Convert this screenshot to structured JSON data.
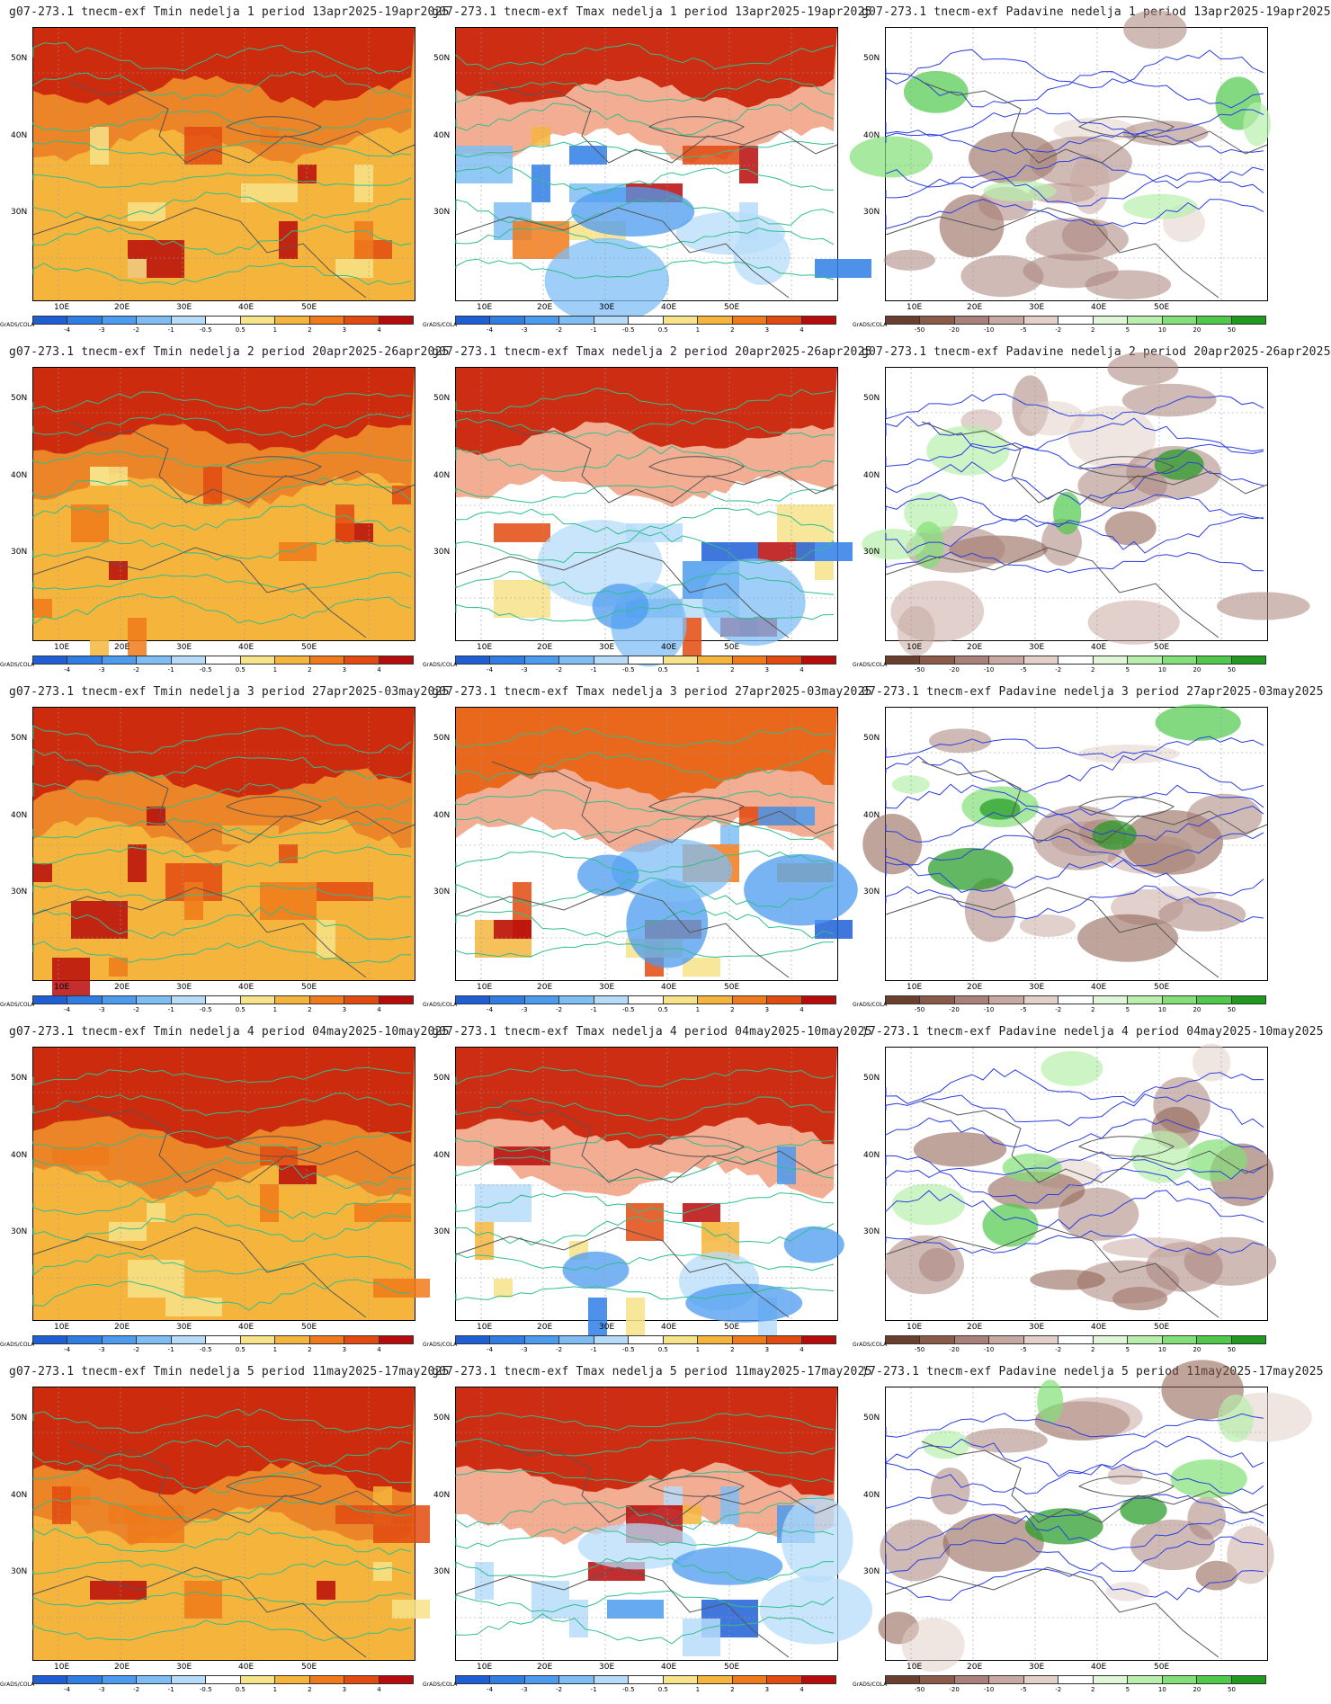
{
  "lat_labels": [
    "50N",
    "40N",
    "30N"
  ],
  "lon_labels": [
    "10E",
    "20E",
    "30E",
    "40E",
    "50E"
  ],
  "grads_tag": "GrADS/COLA",
  "colorbars": {
    "temperature": {
      "labels": [
        "-4",
        "-3",
        "-2",
        "-1",
        "-0.5",
        "0.5",
        "1",
        "2",
        "3",
        "4"
      ],
      "colors": [
        "#1f5fd6",
        "#2f7ee6",
        "#4b9bf0",
        "#7fbef5",
        "#b7dcfa",
        "#ffffff",
        "#f7e38a",
        "#f5b53d",
        "#f07a1a",
        "#e24a0f",
        "#b80b0b"
      ]
    },
    "precip": {
      "labels": [
        "-50",
        "-20",
        "-10",
        "-5",
        "-2",
        "2",
        "5",
        "10",
        "20",
        "50"
      ],
      "colors": [
        "#6b3f2e",
        "#8b5a48",
        "#a9817a",
        "#c8a9a2",
        "#e2d0c9",
        "#ffffff",
        "#dff7d8",
        "#b8efad",
        "#83df78",
        "#4ec94a",
        "#1f9a1f"
      ]
    }
  },
  "rows": [
    {
      "panels": [
        {
          "type": "tmin",
          "title": "g07-273.1 tnecm-exf Tmin nedelja 1 period 13apr2025-19apr2025"
        },
        {
          "type": "tmax",
          "title": "g07-273.1 tnecm-exf Tmax nedelja 1 period 13apr2025-19apr2025"
        },
        {
          "type": "pad",
          "title": "g07-273.1 tnecm-exf Padavine nedelja 1 period 13apr2025-19apr2025"
        }
      ]
    },
    {
      "panels": [
        {
          "type": "tmin",
          "title": "g07-273.1 tnecm-exf Tmin nedelja 2 period 20apr2025-26apr2025"
        },
        {
          "type": "tmax",
          "title": "g07-273.1 tnecm-exf Tmax nedelja 2 period 20apr2025-26apr2025"
        },
        {
          "type": "pad",
          "title": "g07-273.1 tnecm-exf Padavine nedelja 2 period 20apr2025-26apr2025"
        }
      ]
    },
    {
      "panels": [
        {
          "type": "tmin",
          "title": "g07-273.1 tnecm-exf Tmin nedelja 3 period 27apr2025-03may2025"
        },
        {
          "type": "tmax",
          "title": "g07-273.1 tnecm-exf Tmax nedelja 3 period 27apr2025-03may2025"
        },
        {
          "type": "pad",
          "title": "07-273.1 tnecm-exf Padavine nedelja 3 period 27apr2025-03may2025"
        }
      ]
    },
    {
      "panels": [
        {
          "type": "tmin",
          "title": "g07-273.1 tnecm-exf Tmin nedelja 4 period 04may2025-10may2025"
        },
        {
          "type": "tmax",
          "title": "g07-273.1 tnecm-exf Tmax nedelja 4 period 04may2025-10may2025"
        },
        {
          "type": "pad",
          "title": ")7-273.1 tnecm-exf Padavine nedelja 4 period 04may2025-10may2025"
        }
      ]
    },
    {
      "panels": [
        {
          "type": "tmin",
          "title": "g07-273.1 tnecm-exf Tmin nedelja 5 period 11may2025-17may2025"
        },
        {
          "type": "tmax",
          "title": "g07-273.1 tnecm-exf Tmax nedelja 5 period 11may2025-17may2025"
        },
        {
          "type": "pad",
          "title": ")7-273.1 tnecm-exf Padavine nedelja 5 period 11may2025-17may2025"
        }
      ]
    }
  ]
}
